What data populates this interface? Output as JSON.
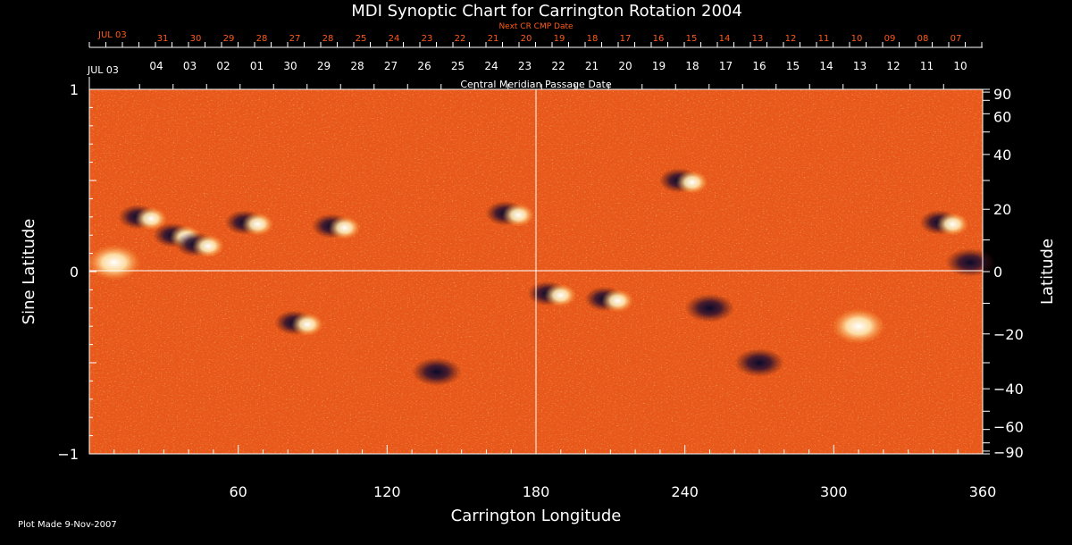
{
  "chart_data": {
    "type": "heatmap",
    "title": "MDI Synoptic Chart for Carrington Rotation 2004",
    "xlabel": "Carrington Longitude",
    "ylabel": "Sine Latitude",
    "y2label": "Latitude",
    "xlim": [
      0,
      360
    ],
    "ylim": [
      -1,
      1
    ],
    "x_ticks": [
      60,
      120,
      180,
      240,
      300,
      360
    ],
    "y_ticks": [
      -1,
      0,
      1
    ],
    "y2_ticks": [
      90,
      60,
      40,
      20,
      0,
      -20,
      -40,
      -60,
      -90
    ],
    "top_axis_caption": "Central Meridian Passage Date",
    "date_axis_start_label": "JUL 03",
    "date_axis_labels": [
      "04",
      "03",
      "02",
      "01",
      "30",
      "29",
      "28",
      "27",
      "26",
      "25",
      "24",
      "23",
      "22",
      "21",
      "20",
      "19",
      "18",
      "17",
      "16",
      "15",
      "14",
      "13",
      "12",
      "11",
      "10"
    ],
    "next_cr_caption": "Next CR CMP Date",
    "next_cr_start_label": "JUL 03",
    "next_cr_labels": [
      "31",
      "30",
      "29",
      "28",
      "27",
      "28",
      "25",
      "24",
      "23",
      "22",
      "21",
      "20",
      "19",
      "18",
      "17",
      "16",
      "15",
      "14",
      "13",
      "12",
      "11",
      "10",
      "09",
      "08",
      "07"
    ],
    "grid": "lines at sine latitude 0 and longitude 180",
    "colorscale": "dark blue (negative polarity) - orange (zero) - white (positive polarity)",
    "active_regions": [
      {
        "lon": 10,
        "sinlat": 0.05,
        "polarity": "positive"
      },
      {
        "lon": 22,
        "sinlat": 0.3,
        "polarity": "mixed"
      },
      {
        "lon": 36,
        "sinlat": 0.2,
        "polarity": "mixed"
      },
      {
        "lon": 45,
        "sinlat": 0.15,
        "polarity": "mixed"
      },
      {
        "lon": 65,
        "sinlat": 0.27,
        "polarity": "mixed"
      },
      {
        "lon": 100,
        "sinlat": 0.25,
        "polarity": "mixed"
      },
      {
        "lon": 170,
        "sinlat": 0.32,
        "polarity": "mixed"
      },
      {
        "lon": 187,
        "sinlat": -0.12,
        "polarity": "mixed"
      },
      {
        "lon": 210,
        "sinlat": -0.15,
        "polarity": "mixed"
      },
      {
        "lon": 240,
        "sinlat": 0.5,
        "polarity": "mixed"
      },
      {
        "lon": 250,
        "sinlat": -0.2,
        "polarity": "negative"
      },
      {
        "lon": 310,
        "sinlat": -0.3,
        "polarity": "positive"
      },
      {
        "lon": 345,
        "sinlat": 0.27,
        "polarity": "mixed"
      },
      {
        "lon": 355,
        "sinlat": 0.05,
        "polarity": "negative"
      },
      {
        "lon": 85,
        "sinlat": -0.28,
        "polarity": "mixed"
      },
      {
        "lon": 140,
        "sinlat": -0.55,
        "polarity": "negative"
      },
      {
        "lon": 270,
        "sinlat": -0.5,
        "polarity": "negative"
      }
    ]
  },
  "footer": {
    "plot_made": "Plot Made  9-Nov-2007"
  }
}
